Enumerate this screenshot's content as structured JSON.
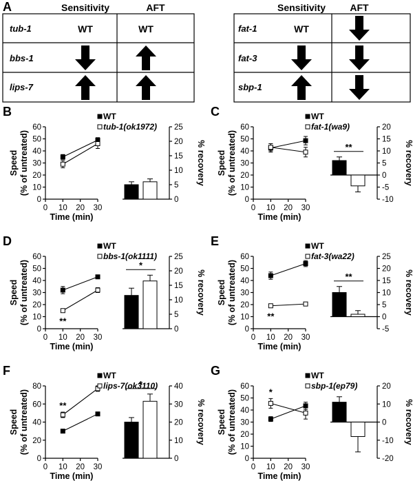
{
  "figure": {
    "panel_letters": [
      "A",
      "B",
      "C",
      "D",
      "E",
      "F",
      "G"
    ],
    "colors": {
      "ink": "#000000",
      "background": "#ffffff"
    }
  },
  "tables": [
    {
      "headers": [
        "",
        "Sensitivity",
        "AFT"
      ],
      "rows": [
        {
          "gene": "tub-1",
          "sensitivity": "WT",
          "aft": "WT"
        },
        {
          "gene": "bbs-1",
          "sensitivity": "down",
          "aft": "up"
        },
        {
          "gene": "lips-7",
          "sensitivity": "up",
          "aft": "up"
        }
      ]
    },
    {
      "headers": [
        "",
        "Sensitivity",
        "AFT"
      ],
      "rows": [
        {
          "gene": "fat-1",
          "sensitivity": "WT",
          "aft": "down"
        },
        {
          "gene": "fat-3",
          "sensitivity": "down",
          "aft": "down"
        },
        {
          "gene": "sbp-1",
          "sensitivity": "up",
          "aft": "down"
        }
      ]
    }
  ],
  "axis_labels": {
    "speed": "Speed",
    "speed_sub": "(% of untreated)",
    "time": "Time (min)",
    "recovery": "% recovery"
  },
  "chart_data": [
    {
      "panel": "B",
      "type": "line+bar",
      "legend": [
        "WT",
        "tub-1(ok1972)"
      ],
      "line": {
        "x": [
          10,
          30
        ],
        "xticks": [
          0,
          10,
          20,
          30
        ],
        "ylim": [
          0,
          60
        ],
        "yticks": [
          0,
          10,
          20,
          30,
          40,
          50,
          60
        ],
        "series": [
          {
            "name": "WT",
            "values": [
              35,
              49
            ],
            "err": [
              2,
              2
            ],
            "marker": "filled"
          },
          {
            "name": "tub-1(ok1972)",
            "values": [
              29,
              46
            ],
            "err": [
              3,
              4
            ],
            "marker": "open"
          }
        ],
        "annotations": []
      },
      "bar": {
        "ylim": [
          0,
          25
        ],
        "yticks": [
          0,
          5,
          10,
          15,
          20,
          25
        ],
        "values": [
          5,
          6
        ],
        "err": [
          1,
          1
        ],
        "significance": ""
      }
    },
    {
      "panel": "C",
      "type": "line+bar",
      "legend": [
        "WT",
        "fat-1(wa9)"
      ],
      "line": {
        "x": [
          10,
          30
        ],
        "xticks": [
          0,
          10,
          20,
          30
        ],
        "ylim": [
          0,
          60
        ],
        "yticks": [
          0,
          10,
          20,
          30,
          40,
          50,
          60
        ],
        "series": [
          {
            "name": "WT",
            "values": [
              42.5,
              48.5
            ],
            "err": [
              3.5,
              3.5
            ],
            "marker": "filled"
          },
          {
            "name": "fat-1(wa9)",
            "values": [
              43,
              39
            ],
            "err": [
              3,
              4
            ],
            "marker": "open"
          }
        ],
        "annotations": []
      },
      "bar": {
        "ylim": [
          -10,
          20
        ],
        "yticks": [
          -10,
          -5,
          0,
          5,
          10,
          15,
          20
        ],
        "values": [
          6,
          -4.5
        ],
        "err": [
          1.5,
          2.5
        ],
        "significance": "**"
      }
    },
    {
      "panel": "D",
      "type": "line+bar",
      "legend": [
        "WT",
        "bbs-1(ok1111)"
      ],
      "line": {
        "x": [
          10,
          30
        ],
        "xticks": [
          0,
          10,
          20,
          30
        ],
        "ylim": [
          0,
          60
        ],
        "yticks": [
          0,
          10,
          20,
          30,
          40,
          50,
          60
        ],
        "series": [
          {
            "name": "WT",
            "values": [
              32,
              43
            ],
            "err": [
              3,
              1.5
            ],
            "marker": "filled"
          },
          {
            "name": "bbs-1(ok1111)",
            "values": [
              15,
              32
            ],
            "err": [
              1.5,
              2
            ],
            "marker": "open"
          }
        ],
        "annotations": [
          {
            "x": 10,
            "text": "**",
            "pos": "below"
          }
        ]
      },
      "bar": {
        "ylim": [
          0,
          25
        ],
        "yticks": [
          0,
          5,
          10,
          15,
          20,
          25
        ],
        "values": [
          11.5,
          16.5
        ],
        "err": [
          2.5,
          2
        ],
        "significance": "*"
      }
    },
    {
      "panel": "E",
      "type": "line+bar",
      "legend": [
        "WT",
        "fat-3(wa22)"
      ],
      "line": {
        "x": [
          10,
          30
        ],
        "xticks": [
          0,
          10,
          20,
          30
        ],
        "ylim": [
          0,
          60
        ],
        "yticks": [
          0,
          10,
          20,
          30,
          40,
          50,
          60
        ],
        "series": [
          {
            "name": "WT",
            "values": [
              44,
              54
            ],
            "err": [
              3,
              2.5
            ],
            "marker": "filled"
          },
          {
            "name": "fat-3(wa22)",
            "values": [
              19,
              20.5
            ],
            "err": [
              1.5,
              1
            ],
            "marker": "open"
          }
        ],
        "annotations": [
          {
            "x": 10,
            "text": "**",
            "pos": "below"
          }
        ]
      },
      "bar": {
        "ylim": [
          -5,
          25
        ],
        "yticks": [
          -5,
          0,
          5,
          10,
          15,
          20,
          25
        ],
        "values": [
          10,
          1
        ],
        "err": [
          2.5,
          1.5
        ],
        "significance": "**"
      }
    },
    {
      "panel": "F",
      "type": "line+bar",
      "legend": [
        "WT",
        "lips-7(ok3110)"
      ],
      "line": {
        "x": [
          10,
          30
        ],
        "xticks": [
          0,
          10,
          20,
          30
        ],
        "ylim": [
          0,
          80
        ],
        "yticks": [
          0,
          20,
          40,
          60,
          80
        ],
        "series": [
          {
            "name": "WT",
            "values": [
              30,
              49
            ],
            "err": [
              1,
              1
            ],
            "marker": "filled"
          },
          {
            "name": "lips-7(ok3110)",
            "values": [
              48,
              77
            ],
            "err": [
              3,
              3
            ],
            "marker": "open"
          }
        ],
        "annotations": [
          {
            "x": 10,
            "text": "**",
            "pos": "above"
          }
        ]
      },
      "bar": {
        "ylim": [
          0,
          40
        ],
        "yticks": [
          0,
          10,
          20,
          30,
          40
        ],
        "values": [
          20,
          31.5
        ],
        "err": [
          2.5,
          4
        ],
        "significance": "*"
      }
    },
    {
      "panel": "G",
      "type": "line+bar",
      "legend": [
        "WT",
        "sbp-1(ep79)"
      ],
      "line": {
        "x": [
          10,
          30
        ],
        "xticks": [
          0,
          10,
          20,
          30
        ],
        "ylim": [
          0,
          60
        ],
        "yticks": [
          0,
          10,
          20,
          30,
          40,
          50,
          60
        ],
        "series": [
          {
            "name": "WT",
            "values": [
              32.5,
              43.5
            ],
            "err": [
              2,
              3
            ],
            "marker": "filled"
          },
          {
            "name": "sbp-1(ep79)",
            "values": [
              45.5,
              37.5
            ],
            "err": [
              4,
              5
            ],
            "marker": "open"
          }
        ],
        "annotations": [
          {
            "x": 10,
            "text": "*",
            "pos": "above"
          }
        ]
      },
      "bar": {
        "ylim": [
          -20,
          20
        ],
        "yticks": [
          -20,
          -10,
          0,
          10,
          20
        ],
        "values": [
          11,
          -8
        ],
        "err": [
          3,
          8.5
        ],
        "significance": ""
      }
    }
  ]
}
